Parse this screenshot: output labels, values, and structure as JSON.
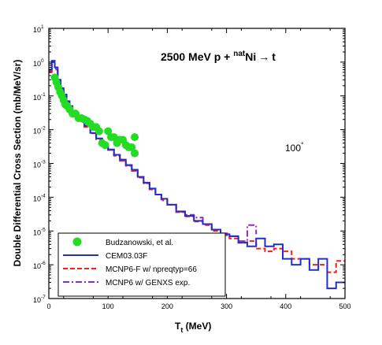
{
  "chart_data": {
    "type": "line",
    "title": {
      "energy": "2500 MeV p + ",
      "isotope_mass": "nat",
      "element": "Ni",
      "arrow": "→",
      "product": "t"
    },
    "annotation": {
      "angle": "100",
      "degree": "°"
    },
    "xlabel": {
      "base": "T",
      "sub": "t",
      "unit": " (MeV)"
    },
    "ylabel": "Double Differential Cross Section (mb/MeV/sr)",
    "xlim": [
      0,
      500
    ],
    "ylim": [
      1e-07,
      10
    ],
    "yscale": "log",
    "x_ticks": [
      "0",
      "100",
      "200",
      "300",
      "400",
      "500"
    ],
    "y_ticks": [
      {
        "base": "10",
        "exp": "1"
      },
      {
        "base": "10",
        "exp": "0"
      },
      {
        "base": "10",
        "exp": "-1"
      },
      {
        "base": "10",
        "exp": "-2"
      },
      {
        "base": "10",
        "exp": "-3"
      },
      {
        "base": "10",
        "exp": "-4"
      },
      {
        "base": "10",
        "exp": "-5"
      },
      {
        "base": "10",
        "exp": "-6"
      },
      {
        "base": "10",
        "exp": "-7"
      }
    ],
    "legend_position": "bottom-left",
    "series": [
      {
        "name": "Budzanowski, et al.",
        "kind": "scatter",
        "color": "#22dd22",
        "x": [
          10,
          13,
          16,
          19,
          22,
          25,
          28,
          31,
          35,
          40,
          45,
          50,
          55,
          60,
          65,
          70,
          75,
          80,
          85,
          90,
          95,
          100,
          105,
          110,
          115,
          120,
          125,
          130,
          135,
          140,
          145,
          145
        ],
        "y": [
          0.35,
          0.25,
          0.18,
          0.13,
          0.1,
          0.075,
          0.055,
          0.05,
          0.04,
          0.03,
          0.03,
          0.022,
          0.022,
          0.02,
          0.018,
          0.015,
          0.012,
          0.012,
          0.009,
          0.004,
          0.0035,
          0.009,
          0.006,
          0.006,
          0.004,
          0.005,
          0.005,
          0.0035,
          0.003,
          0.003,
          0.006,
          0.002
        ]
      },
      {
        "name": "CEM03.03F",
        "kind": "step",
        "color": "#1f2fd0",
        "x": [
          0,
          5,
          10,
          15,
          20,
          25,
          30,
          35,
          40,
          50,
          60,
          70,
          80,
          90,
          100,
          110,
          120,
          130,
          140,
          150,
          160,
          170,
          180,
          190,
          200,
          215,
          230,
          245,
          260,
          275,
          290,
          305,
          320,
          335,
          350,
          365,
          380,
          395,
          410,
          425,
          440,
          455,
          470,
          485,
          500
        ],
        "y": [
          0.6,
          1.1,
          0.7,
          0.3,
          0.17,
          0.11,
          0.07,
          0.05,
          0.032,
          0.02,
          0.013,
          0.008,
          0.0055,
          0.0038,
          0.0026,
          0.0018,
          0.0013,
          0.0009,
          0.00065,
          0.0004,
          0.00027,
          0.00018,
          0.00012,
          9e-05,
          6e-05,
          3.8e-05,
          2.8e-05,
          2e-05,
          1.6e-05,
          1.1e-05,
          8e-06,
          7e-06,
          4.5e-06,
          3.5e-06,
          6e-06,
          3.5e-06,
          4e-06,
          1.5e-06,
          1e-06,
          1.5e-06,
          7e-07,
          1.5e-06,
          2e-07,
          3e-07,
          3e-07
        ]
      },
      {
        "name": "MCNP6-F w/ npreqtyp=66",
        "kind": "step",
        "color": "#ff1a1a",
        "dash": "6,3",
        "x": [
          0,
          5,
          10,
          15,
          20,
          25,
          30,
          35,
          40,
          50,
          60,
          70,
          80,
          90,
          100,
          110,
          120,
          130,
          140,
          150,
          160,
          170,
          180,
          190,
          200,
          215,
          230,
          245,
          260,
          275,
          290,
          305,
          320,
          335,
          350,
          365,
          380,
          395,
          410,
          425,
          440,
          455,
          470,
          485,
          500
        ],
        "y": [
          0.5,
          0.9,
          0.6,
          0.28,
          0.16,
          0.1,
          0.065,
          0.045,
          0.03,
          0.019,
          0.012,
          0.0078,
          0.0052,
          0.0036,
          0.0025,
          0.0017,
          0.0012,
          0.00085,
          0.0006,
          0.00038,
          0.00026,
          0.00017,
          0.00012,
          8.5e-05,
          6e-05,
          3.6e-05,
          2.7e-05,
          1.9e-05,
          1.5e-05,
          1e-05,
          7.5e-06,
          6e-06,
          4.5e-06,
          5e-06,
          3e-06,
          2.5e-06,
          3e-06,
          2.5e-06,
          1.5e-06,
          1.5e-06,
          1e-06,
          1e-06,
          6e-07,
          1.3e-06,
          1.3e-06
        ]
      },
      {
        "name": "MCNP6 w/ GENXS exp.",
        "kind": "step",
        "color": "#8e2bc8",
        "dash": "8,3,2,3",
        "x": [
          0,
          5,
          10,
          15,
          20,
          25,
          30,
          35,
          40,
          50,
          60,
          70,
          80,
          90,
          100,
          110,
          120,
          130,
          140,
          150,
          160,
          170,
          180,
          190,
          200,
          215,
          230,
          245,
          260,
          275,
          290,
          305,
          320,
          335,
          350
        ],
        "y": [
          0.55,
          1.0,
          0.65,
          0.29,
          0.165,
          0.105,
          0.068,
          0.047,
          0.031,
          0.0195,
          0.0125,
          0.008,
          0.0054,
          0.0037,
          0.0025,
          0.0017,
          0.0012,
          0.00088,
          0.00062,
          0.0004,
          0.00026,
          0.00018,
          0.00012,
          8e-05,
          6e-05,
          3.7e-05,
          3e-05,
          2.5e-05,
          1.6e-05,
          1.1e-05,
          8.5e-06,
          7e-06,
          5e-06,
          1.5e-05,
          8e-06
        ]
      }
    ]
  }
}
